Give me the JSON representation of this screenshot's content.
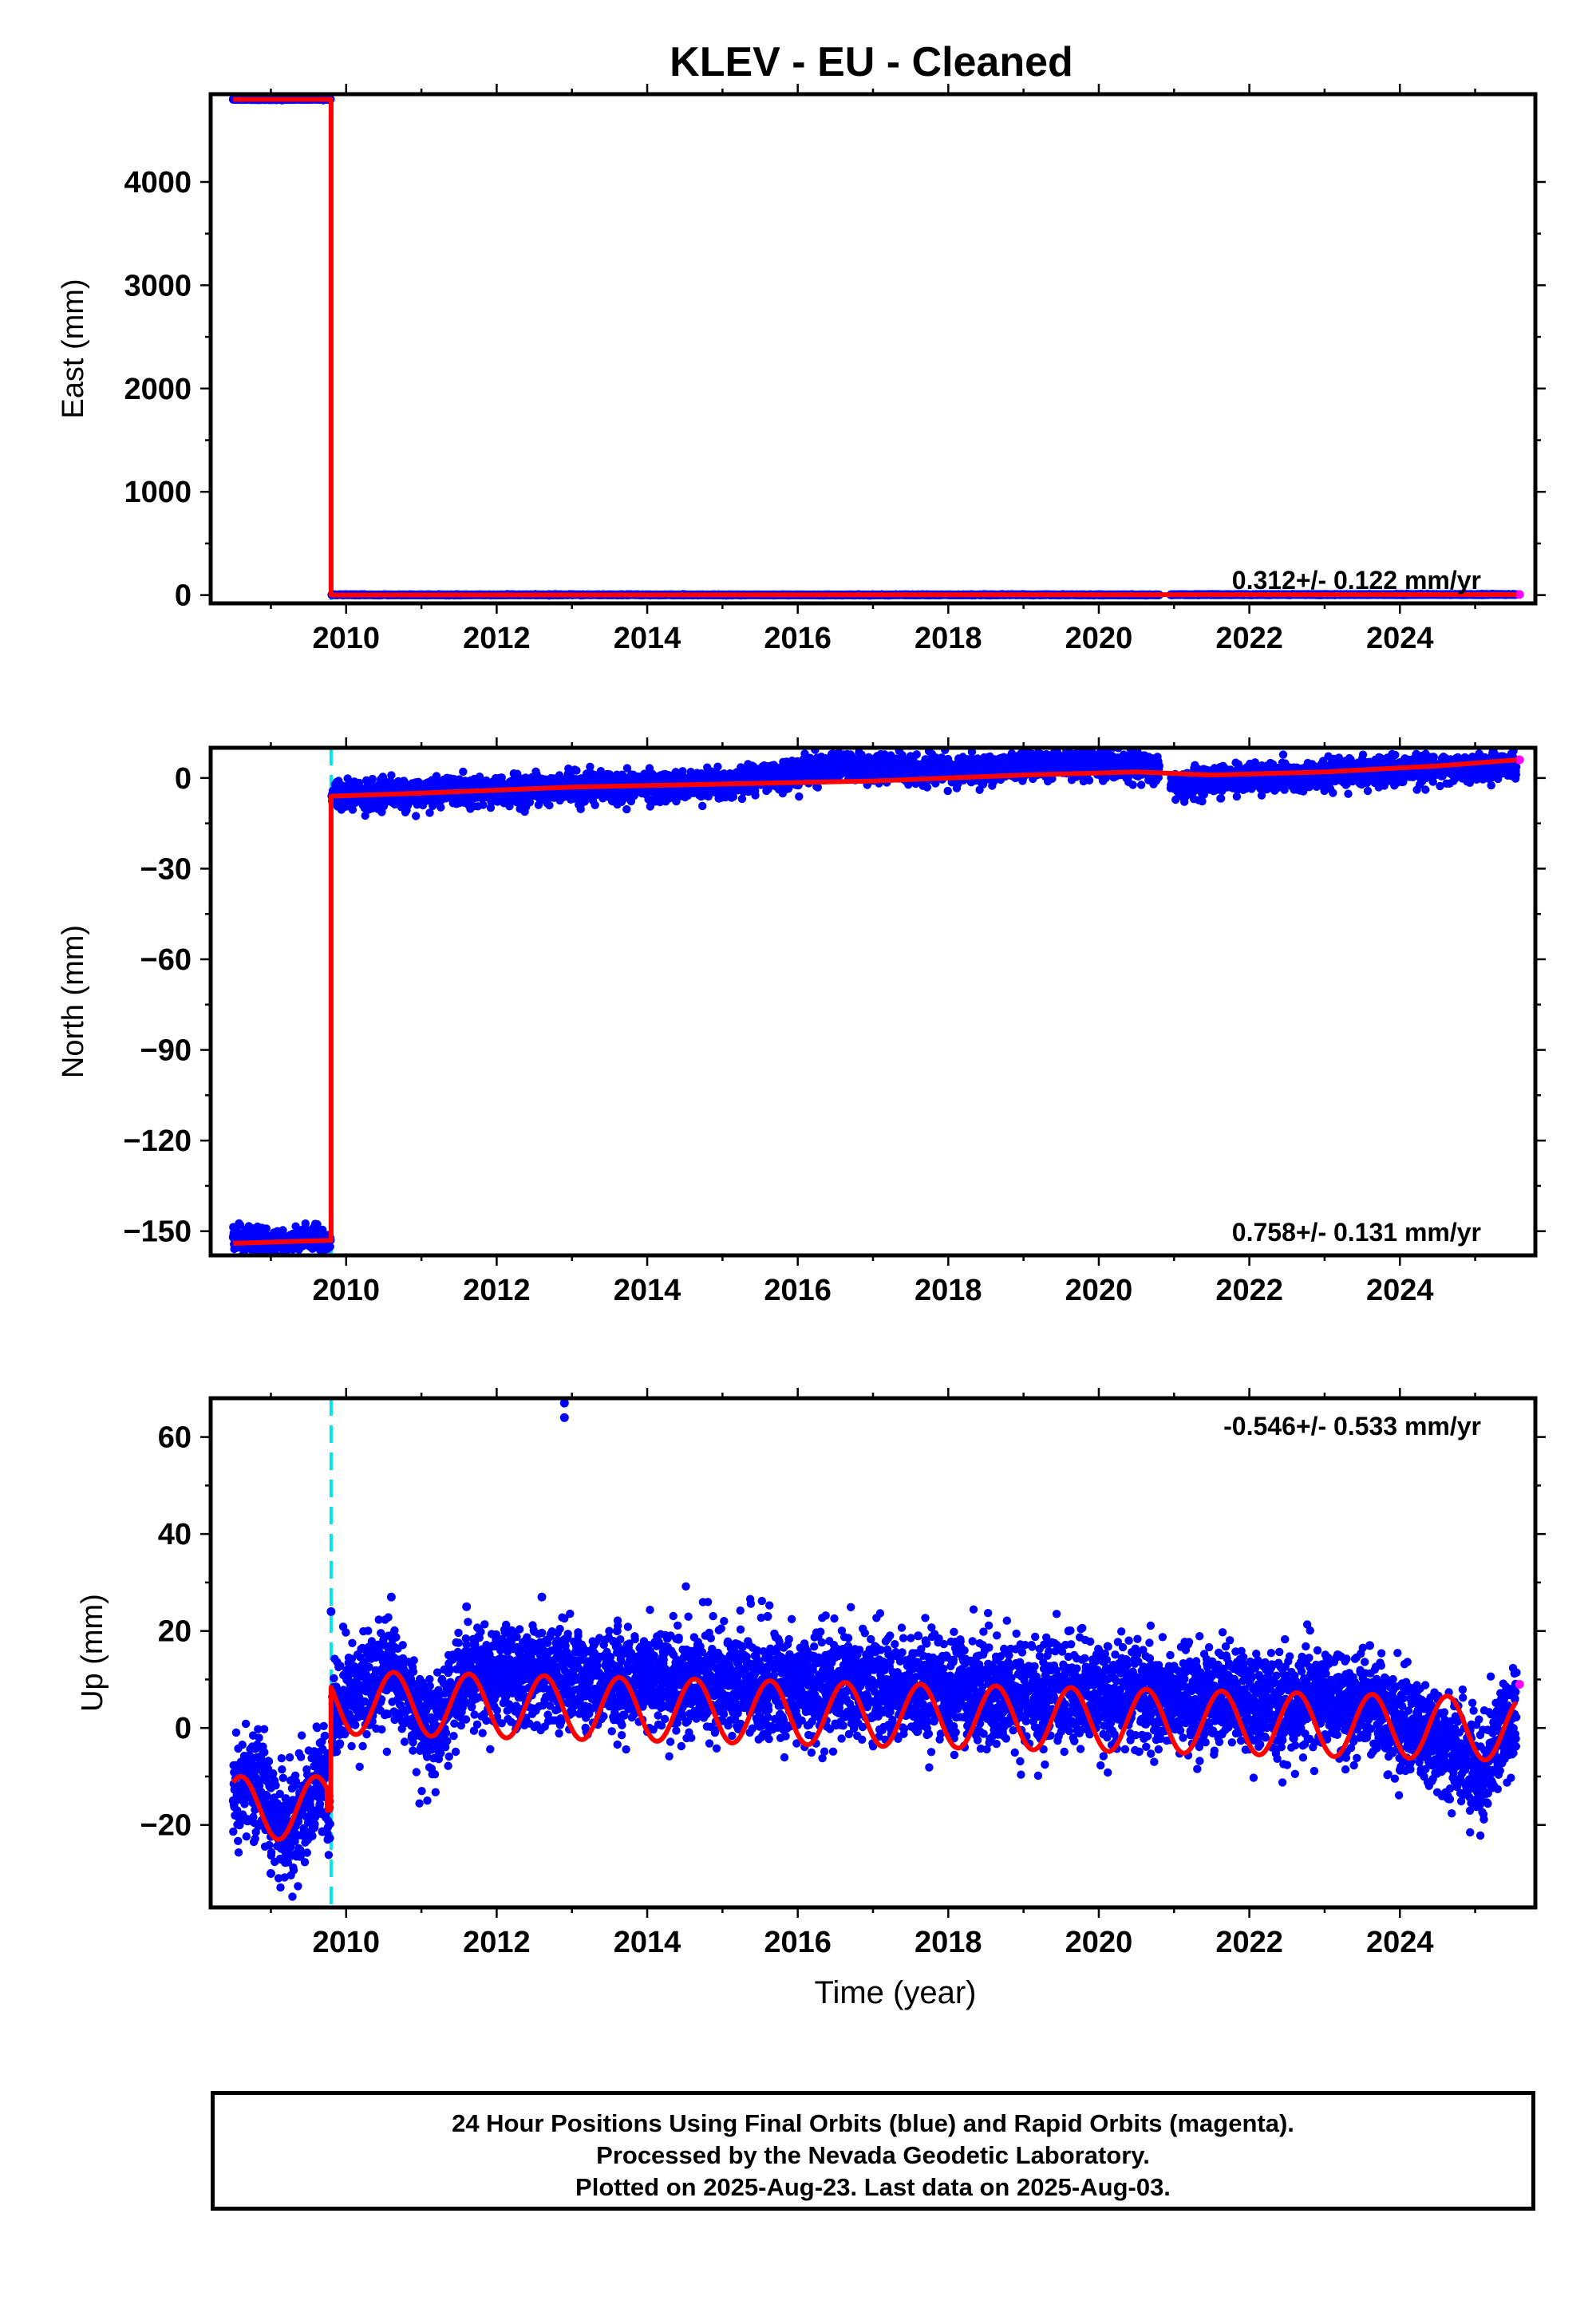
{
  "title": "KLEV  - EU - Cleaned",
  "footer": {
    "line1": "24 Hour Positions Using Final Orbits (blue) and Rapid Orbits (magenta).",
    "line2": "Processed by the Nevada Geodetic Laboratory.",
    "line3": "Plotted on 2025-Aug-23. Last data on 2025-Aug-03."
  },
  "colors": {
    "final": "#0000ff",
    "rapid": "#ff00ff",
    "model": "#ff0000",
    "offset": "#00e5ee",
    "axis": "#000000"
  },
  "chart_data": [
    {
      "type": "scatter",
      "panel": "east",
      "ylabel": "East (mm)",
      "xlabel": "",
      "xlim": [
        2008.2,
        2025.8
      ],
      "ylim": [
        -80,
        4850
      ],
      "xticks": [
        "2010",
        "2012",
        "2014",
        "2016",
        "2018",
        "2020",
        "2022",
        "2024"
      ],
      "yticks": [
        "0",
        "1000",
        "2000",
        "3000",
        "4000"
      ],
      "rate": "0.312+/- 0.122 mm/yr",
      "rate_position": "bottom-right",
      "offset_epochs": [
        2009.8
      ],
      "data_start": 2008.5,
      "data_end": 2025.55,
      "series": [
        {
          "name": "Final Orbits",
          "color": "#0000ff",
          "x": [
            2008.5,
            2009.0,
            2009.5,
            2009.79,
            2009.81,
            2011.0,
            2013.0,
            2015.0,
            2017.0,
            2019.0,
            2020.8,
            2021.0,
            2023.0,
            2025.5
          ],
          "y": [
            4800,
            4798,
            4801,
            4800,
            3,
            2,
            3,
            2,
            2,
            3,
            2,
            4,
            5,
            6
          ]
        },
        {
          "name": "Rapid Orbits",
          "color": "#ff00ff",
          "x": [
            2025.59
          ],
          "y": [
            6
          ]
        },
        {
          "name": "Model",
          "color": "#ff0000",
          "x": [
            2008.5,
            2009.8,
            2009.8,
            2025.55
          ],
          "y": [
            4800,
            4800,
            0,
            5
          ]
        }
      ]
    },
    {
      "type": "scatter",
      "panel": "north",
      "ylabel": "North (mm)",
      "xlabel": "",
      "xlim": [
        2008.2,
        2025.8
      ],
      "ylim": [
        -158,
        10
      ],
      "xticks": [
        "2010",
        "2012",
        "2014",
        "2016",
        "2018",
        "2020",
        "2022",
        "2024"
      ],
      "yticks": [
        "0",
        "−30",
        "−60",
        "−90",
        "−120",
        "−150"
      ],
      "rate": "0.758+/- 0.131 mm/yr",
      "rate_position": "bottom-right",
      "offset_epochs": [
        2009.8
      ],
      "data_start": 2008.5,
      "data_end": 2025.55,
      "series": [
        {
          "name": "Final Orbits",
          "color": "#0000ff",
          "x": [
            2008.5,
            2009.0,
            2009.5,
            2009.79,
            2009.81,
            2011.0,
            2013.0,
            2015.0,
            2016.6,
            2018.0,
            2019.5,
            2020.8,
            2021.0,
            2022.0,
            2023.0,
            2024.0,
            2025.5
          ],
          "y": [
            -152,
            -154,
            -153,
            -153,
            -6,
            -5,
            -3,
            -2,
            4,
            2,
            5,
            4,
            -2,
            0,
            1,
            3,
            4
          ]
        },
        {
          "name": "Rapid Orbits",
          "color": "#ff00ff",
          "x": [
            2025.59
          ],
          "y": [
            6
          ]
        },
        {
          "name": "Model",
          "color": "#ff0000",
          "x": [
            2008.5,
            2009.8,
            2009.8,
            2011.0,
            2013.0,
            2015.0,
            2017.0,
            2019.0,
            2020.5,
            2021.5,
            2023.0,
            2024.5,
            2025.55
          ],
          "y": [
            -154,
            -153,
            -6,
            -5,
            -3,
            -2,
            -1,
            1,
            2,
            1,
            2,
            4,
            6
          ]
        }
      ]
    },
    {
      "type": "scatter",
      "panel": "up",
      "ylabel": "Up (mm)",
      "xlabel": "Time (year)",
      "xlim": [
        2008.2,
        2025.8
      ],
      "ylim": [
        -37,
        68
      ],
      "xticks": [
        "2010",
        "2012",
        "2014",
        "2016",
        "2018",
        "2020",
        "2022",
        "2024"
      ],
      "yticks": [
        "−20",
        "0",
        "20",
        "40",
        "60"
      ],
      "rate": "-0.546+/- 0.533 mm/yr",
      "rate_position": "top-right",
      "offset_epochs": [
        2009.8
      ],
      "data_start": 2008.5,
      "data_end": 2025.55,
      "seasonal_amplitude_mm": [
        5,
        7
      ],
      "series": [
        {
          "name": "Final Orbits",
          "color": "#0000ff",
          "x": [
            2008.5,
            2009.0,
            2009.8,
            2010.6,
            2011.6,
            2012.6,
            2012.9,
            2012.9,
            2013.6,
            2015.6,
            2017.6,
            2019.6,
            2021.6,
            2023.6,
            2025.5
          ],
          "y": [
            -15,
            -30,
            24,
            27,
            25,
            27,
            64,
            67,
            20,
            23,
            19,
            20,
            11,
            17,
            3
          ]
        },
        {
          "name": "Rapid Orbits",
          "color": "#ff00ff",
          "x": [
            2025.59
          ],
          "y": [
            9
          ]
        },
        {
          "name": "Model",
          "color": "#ff0000",
          "x": [
            2008.5,
            2008.7,
            2009.2,
            2009.7,
            2009.8,
            2009.8,
            2010.6,
            2011.1,
            2011.6,
            2013.6,
            2015.6,
            2017.6,
            2019.6,
            2020.6,
            2021.6,
            2023.6,
            2025.1,
            2025.55
          ],
          "y": [
            -15,
            -9,
            -22,
            -10,
            -17,
            4,
            12,
            -1,
            11,
            10,
            9,
            8,
            7,
            7,
            6,
            5,
            -9,
            3
          ]
        }
      ]
    }
  ]
}
